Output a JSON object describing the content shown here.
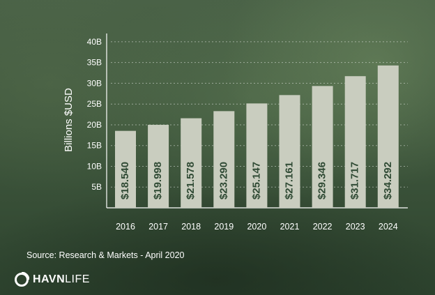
{
  "chart_data": {
    "type": "bar",
    "categories": [
      "2016",
      "2017",
      "2018",
      "2019",
      "2020",
      "2021",
      "2022",
      "2023",
      "2024"
    ],
    "values": [
      18.54,
      19.998,
      21.578,
      23.29,
      25.147,
      27.161,
      29.346,
      31.717,
      34.292
    ],
    "data_labels": [
      "$18.540",
      "$19.998",
      "$21.578",
      "$23.290",
      "$25.147",
      "$27.161",
      "$29.346",
      "$31.717",
      "$34.292"
    ],
    "ylabel": "Billions $USD",
    "xlabel": "",
    "y_ticks": [
      5,
      10,
      15,
      20,
      25,
      30,
      35,
      40
    ],
    "y_tick_labels": [
      "5B",
      "10B",
      "15B",
      "20B",
      "25B",
      "30B",
      "35B",
      "40B"
    ],
    "ylim": [
      0,
      42
    ],
    "grid": "horizontal dotted",
    "bar_color": "#c9cdbf",
    "label_color": "#2f4a34"
  },
  "source": "Source: Research & Markets - April 2020",
  "logo": {
    "brand_bold": "HAVN",
    "brand_light": "LIFE",
    "icon": "havn-ring-logo-icon"
  }
}
